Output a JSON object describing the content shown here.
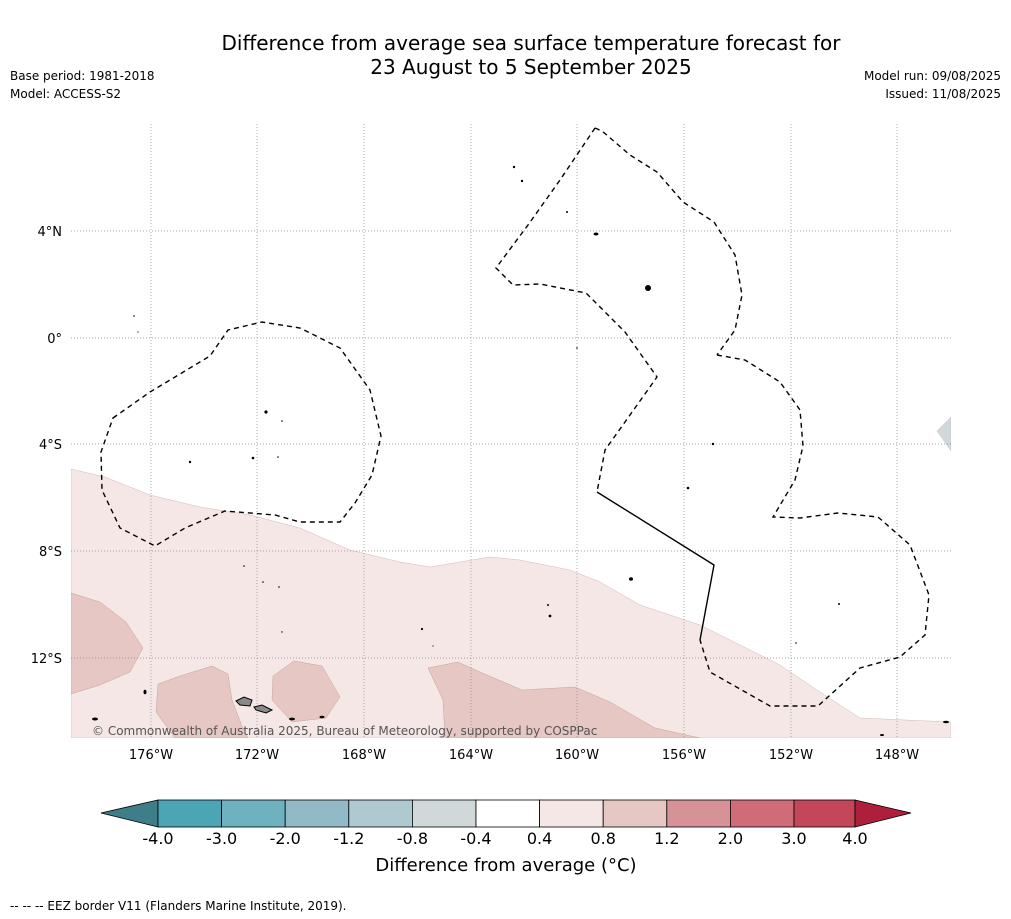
{
  "header": {
    "title_line1": "Difference from average sea surface temperature forecast for",
    "title_line2": "23 August to 5 September 2025",
    "base_period": "Base period: 1981-2018",
    "model": "Model: ACCESS-S2",
    "model_run": "Model run: 09/08/2025",
    "issued": "Issued: 11/08/2025"
  },
  "map": {
    "lat_labels": [
      "4°N",
      "0°",
      "4°S",
      "8°S",
      "12°S"
    ],
    "lon_labels": [
      "176°W",
      "172°W",
      "168°W",
      "164°W",
      "160°W",
      "156°W",
      "152°W",
      "148°W"
    ],
    "copyright": "© Commonwealth of Australia 2025, Bureau of Meteorology, supported by COSPPac",
    "eez_style": "dashed",
    "colors": {
      "band_04_08": "#f5e7e5",
      "band_08_12": "#e7c7c3",
      "band_neg": "#d1d8d9"
    }
  },
  "legend": {
    "tick_labels": [
      "-4.0",
      "-3.0",
      "-2.0",
      "-1.2",
      "-0.8",
      "-0.4",
      "0.4",
      "0.8",
      "1.2",
      "2.0",
      "3.0",
      "4.0"
    ],
    "colors": [
      "#3e7e88",
      "#4ba5b5",
      "#6eb1bf",
      "#91bac6",
      "#aec9d0",
      "#d1d8d9",
      "#ffffff",
      "#f5e7e5",
      "#e7c7c3",
      "#d79298",
      "#cf6c77",
      "#c34759",
      "#ad1f3a"
    ],
    "label": "Difference from average (°C)"
  },
  "footnote": "--  --  -- EEZ border V11 (Flanders Marine Institute, 2019)."
}
